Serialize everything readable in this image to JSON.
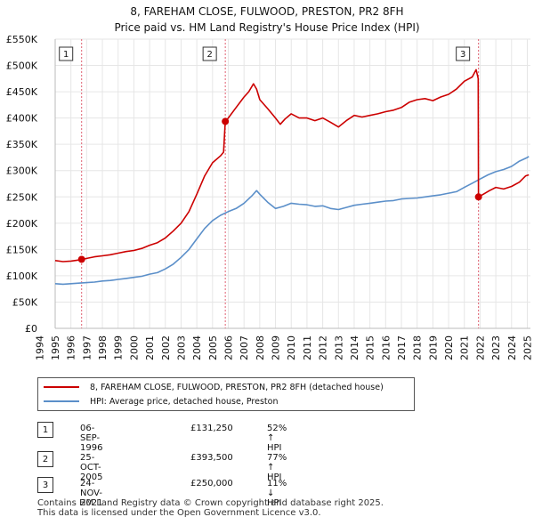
{
  "title_line1": "8, FAREHAM CLOSE, FULWOOD, PRESTON, PR2 8FH",
  "title_line2": "Price paid vs. HM Land Registry's House Price Index (HPI)",
  "colors": {
    "property": "#cc0000",
    "hpi": "#5b8fc9",
    "vline": "#e06070",
    "grid": "#e6e6e6",
    "axis": "#333333"
  },
  "legend": {
    "property_label": "8, FAREHAM CLOSE, FULWOOD, PRESTON, PR2 8FH (detached house)",
    "hpi_label": "HPI: Average price, detached house, Preston"
  },
  "transactions": [
    {
      "num": "1",
      "date": "06-SEP-1996",
      "price": "£131,250",
      "hpi": "52% ↑ HPI"
    },
    {
      "num": "2",
      "date": "25-OCT-2005",
      "price": "£393,500",
      "hpi": "77% ↑ HPI"
    },
    {
      "num": "3",
      "date": "24-NOV-2021",
      "price": "£250,000",
      "hpi": "11% ↓ HPI"
    }
  ],
  "footer": {
    "line1": "Contains HM Land Registry data © Crown copyright and database right 2025.",
    "line2": "This data is licensed under the Open Government Licence v3.0."
  },
  "chart_data": {
    "type": "line",
    "xlim": [
      1995,
      2025.2
    ],
    "ylim": [
      0,
      550000
    ],
    "y_ticks": [
      0,
      50000,
      100000,
      150000,
      200000,
      250000,
      300000,
      350000,
      400000,
      450000,
      500000,
      550000
    ],
    "y_tick_labels": [
      "£0",
      "£50K",
      "£100K",
      "£150K",
      "£200K",
      "£250K",
      "£300K",
      "£350K",
      "£400K",
      "£450K",
      "£500K",
      "£550K"
    ],
    "x_ticks": [
      1994,
      1995,
      1996,
      1997,
      1998,
      1999,
      2000,
      2001,
      2002,
      2003,
      2004,
      2005,
      2006,
      2007,
      2008,
      2009,
      2010,
      2011,
      2012,
      2013,
      2014,
      2015,
      2016,
      2017,
      2018,
      2019,
      2020,
      2021,
      2022,
      2023,
      2024,
      2025
    ],
    "x_tick_labels": [
      "1994",
      "1995",
      "1996",
      "1997",
      "1998",
      "1999",
      "2000",
      "2001",
      "2002",
      "2003",
      "2004",
      "2005",
      "2006",
      "2007",
      "2008",
      "2009",
      "2010",
      "2011",
      "2012",
      "2013",
      "2014",
      "2015",
      "2016",
      "2017",
      "2018",
      "2019",
      "2020",
      "2021",
      "2022",
      "2023",
      "2024",
      "2025"
    ],
    "series": [
      {
        "name": "8, FAREHAM CLOSE, FULWOOD, PRESTON, PR2 8FH (detached house)",
        "points": [
          [
            1995.0,
            129000
          ],
          [
            1995.5,
            127000
          ],
          [
            1996.0,
            128000
          ],
          [
            1996.5,
            130000
          ],
          [
            1996.68,
            131250
          ],
          [
            1997.0,
            133000
          ],
          [
            1997.5,
            136000
          ],
          [
            1998.0,
            138000
          ],
          [
            1998.5,
            140000
          ],
          [
            1999.0,
            143000
          ],
          [
            1999.5,
            146000
          ],
          [
            2000.0,
            148000
          ],
          [
            2000.5,
            152000
          ],
          [
            2001.0,
            158000
          ],
          [
            2001.5,
            163000
          ],
          [
            2002.0,
            172000
          ],
          [
            2002.5,
            185000
          ],
          [
            2003.0,
            200000
          ],
          [
            2003.5,
            222000
          ],
          [
            2004.0,
            255000
          ],
          [
            2004.5,
            290000
          ],
          [
            2005.0,
            315000
          ],
          [
            2005.5,
            328000
          ],
          [
            2005.7,
            335000
          ],
          [
            2005.81,
            393500
          ],
          [
            2006.0,
            400000
          ],
          [
            2006.5,
            420000
          ],
          [
            2007.0,
            440000
          ],
          [
            2007.3,
            450000
          ],
          [
            2007.6,
            465000
          ],
          [
            2007.8,
            455000
          ],
          [
            2008.0,
            435000
          ],
          [
            2008.5,
            418000
          ],
          [
            2009.0,
            400000
          ],
          [
            2009.3,
            388000
          ],
          [
            2009.6,
            398000
          ],
          [
            2010.0,
            408000
          ],
          [
            2010.5,
            400000
          ],
          [
            2011.0,
            400000
          ],
          [
            2011.5,
            395000
          ],
          [
            2012.0,
            400000
          ],
          [
            2012.5,
            392000
          ],
          [
            2013.0,
            383000
          ],
          [
            2013.5,
            395000
          ],
          [
            2014.0,
            405000
          ],
          [
            2014.5,
            402000
          ],
          [
            2015.0,
            405000
          ],
          [
            2015.5,
            408000
          ],
          [
            2016.0,
            412000
          ],
          [
            2016.5,
            415000
          ],
          [
            2017.0,
            420000
          ],
          [
            2017.5,
            430000
          ],
          [
            2018.0,
            435000
          ],
          [
            2018.5,
            437000
          ],
          [
            2019.0,
            433000
          ],
          [
            2019.5,
            440000
          ],
          [
            2020.0,
            445000
          ],
          [
            2020.5,
            455000
          ],
          [
            2021.0,
            470000
          ],
          [
            2021.5,
            478000
          ],
          [
            2021.75,
            492000
          ],
          [
            2021.88,
            475000
          ],
          [
            2021.9,
            250000
          ],
          [
            2022.2,
            255000
          ],
          [
            2022.6,
            262000
          ],
          [
            2023.0,
            268000
          ],
          [
            2023.5,
            265000
          ],
          [
            2024.0,
            270000
          ],
          [
            2024.5,
            278000
          ],
          [
            2024.9,
            290000
          ],
          [
            2025.1,
            292000
          ]
        ]
      },
      {
        "name": "HPI: Average price, detached house, Preston",
        "points": [
          [
            1995.0,
            85000
          ],
          [
            1995.5,
            84000
          ],
          [
            1996.0,
            85000
          ],
          [
            1996.5,
            86000
          ],
          [
            1997.0,
            87000
          ],
          [
            1997.5,
            88000
          ],
          [
            1998.0,
            90000
          ],
          [
            1998.5,
            91000
          ],
          [
            1999.0,
            93000
          ],
          [
            1999.5,
            95000
          ],
          [
            2000.0,
            97000
          ],
          [
            2000.5,
            99000
          ],
          [
            2001.0,
            103000
          ],
          [
            2001.5,
            106000
          ],
          [
            2002.0,
            113000
          ],
          [
            2002.5,
            122000
          ],
          [
            2003.0,
            135000
          ],
          [
            2003.5,
            150000
          ],
          [
            2004.0,
            170000
          ],
          [
            2004.5,
            190000
          ],
          [
            2005.0,
            205000
          ],
          [
            2005.5,
            215000
          ],
          [
            2006.0,
            222000
          ],
          [
            2006.5,
            228000
          ],
          [
            2007.0,
            238000
          ],
          [
            2007.5,
            252000
          ],
          [
            2007.8,
            262000
          ],
          [
            2008.0,
            255000
          ],
          [
            2008.5,
            240000
          ],
          [
            2009.0,
            228000
          ],
          [
            2009.5,
            232000
          ],
          [
            2010.0,
            238000
          ],
          [
            2010.5,
            236000
          ],
          [
            2011.0,
            235000
          ],
          [
            2011.5,
            232000
          ],
          [
            2012.0,
            233000
          ],
          [
            2012.5,
            228000
          ],
          [
            2013.0,
            226000
          ],
          [
            2013.5,
            230000
          ],
          [
            2014.0,
            234000
          ],
          [
            2014.5,
            236000
          ],
          [
            2015.0,
            238000
          ],
          [
            2015.5,
            240000
          ],
          [
            2016.0,
            242000
          ],
          [
            2016.5,
            243000
          ],
          [
            2017.0,
            246000
          ],
          [
            2017.5,
            247000
          ],
          [
            2018.0,
            248000
          ],
          [
            2018.5,
            250000
          ],
          [
            2019.0,
            252000
          ],
          [
            2019.5,
            254000
          ],
          [
            2020.0,
            257000
          ],
          [
            2020.5,
            260000
          ],
          [
            2021.0,
            268000
          ],
          [
            2021.5,
            276000
          ],
          [
            2022.0,
            284000
          ],
          [
            2022.5,
            292000
          ],
          [
            2023.0,
            298000
          ],
          [
            2023.5,
            302000
          ],
          [
            2024.0,
            308000
          ],
          [
            2024.5,
            318000
          ],
          [
            2025.0,
            325000
          ],
          [
            2025.1,
            327000
          ]
        ]
      }
    ],
    "transactions": [
      {
        "label": "1",
        "x": 1996.68,
        "y": 131250
      },
      {
        "label": "2",
        "x": 2005.81,
        "y": 393500
      },
      {
        "label": "3",
        "x": 2021.9,
        "y": 250000
      }
    ]
  }
}
